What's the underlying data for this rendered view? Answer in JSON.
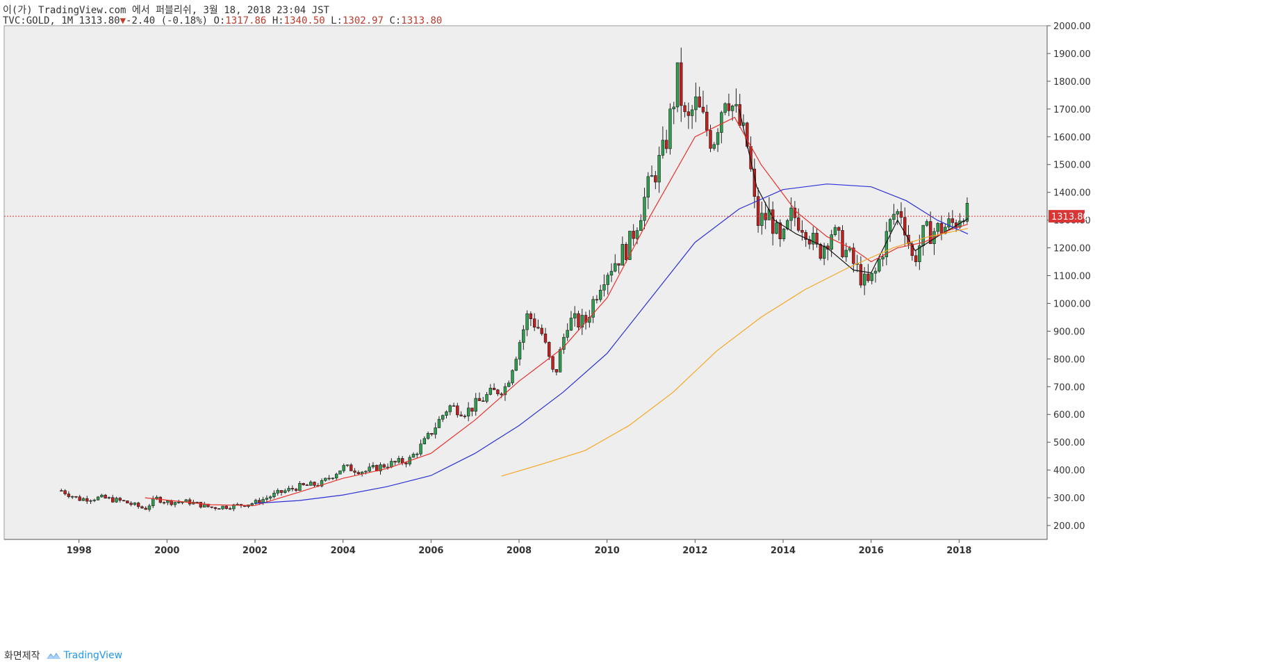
{
  "header": {
    "published": "이(가) TradingView.com 에서 퍼블리쉬, 3월 18, 2018 23:04 JST",
    "symbol": "TVC:GOLD, 1M",
    "last": "1313.80",
    "change_arrow": "▼",
    "change": "-2.40 (-0.18%)",
    "o_label": "O:",
    "o_value": "1317.86",
    "h_label": "H:",
    "h_value": "1340.50",
    "l_label": "L:",
    "l_value": "1302.97",
    "c_label": "C:",
    "c_value": "1313.80"
  },
  "footer": {
    "snapshot": "화면제작",
    "brand": "TradingView",
    "brand_icon": "tradingview-logo-icon"
  },
  "colors": {
    "up": "#2e9e4f",
    "down": "#c21f1f",
    "wick": "#222222",
    "ma_fast": "#111111",
    "ma_mid": "#e8302b",
    "ma_slow": "#2b2fd6",
    "ma_long": "#f5a623",
    "price_line": "#d93535",
    "plot_bg": "#eeeeee"
  },
  "chart_data": {
    "type": "candlestick",
    "title": "TVC:GOLD, 1M",
    "x_range": [
      1996.3,
      2020.0
    ],
    "ylim": [
      150,
      2000
    ],
    "y_ticks": [
      200,
      300,
      400,
      500,
      600,
      700,
      800,
      900,
      1000,
      1100,
      1200,
      1300,
      1400,
      1500,
      1600,
      1700,
      1800,
      1900,
      2000
    ],
    "y_tick_labels": [
      "200.00",
      "300.00",
      "400.00",
      "500.00",
      "600.00",
      "700.00",
      "800.00",
      "900.00",
      "1000.00",
      "1100.00",
      "1200.00",
      "1300.00",
      "1400.00",
      "1500.00",
      "1600.00",
      "1700.00",
      "1800.00",
      "1900.00",
      "2000.00"
    ],
    "x_ticks": [
      1998,
      2000,
      2002,
      2004,
      2006,
      2008,
      2010,
      2012,
      2014,
      2016,
      2018
    ],
    "x_tick_labels": [
      "1998",
      "2000",
      "2002",
      "2004",
      "2006",
      "2008",
      "2010",
      "2012",
      "2014",
      "2016",
      "2018"
    ],
    "last_price": 1313.8,
    "last_price_label": "1313.80",
    "close_anchors": [
      [
        1997.6,
        326
      ],
      [
        1998.0,
        295
      ],
      [
        1998.5,
        300
      ],
      [
        1999.0,
        287
      ],
      [
        1999.5,
        260
      ],
      [
        1999.75,
        298
      ],
      [
        2000.0,
        285
      ],
      [
        2000.5,
        285
      ],
      [
        2001.0,
        265
      ],
      [
        2001.5,
        270
      ],
      [
        2002.0,
        282
      ],
      [
        2002.5,
        315
      ],
      [
        2003.0,
        340
      ],
      [
        2003.5,
        350
      ],
      [
        2004.0,
        410
      ],
      [
        2004.5,
        395
      ],
      [
        2005.0,
        420
      ],
      [
        2005.5,
        435
      ],
      [
        2005.9,
        510
      ],
      [
        2006.4,
        630
      ],
      [
        2006.8,
        610
      ],
      [
        2007.3,
        670
      ],
      [
        2007.7,
        700
      ],
      [
        2008.2,
        960
      ],
      [
        2008.5,
        900
      ],
      [
        2008.8,
        730
      ],
      [
        2009.1,
        935
      ],
      [
        2009.5,
        930
      ],
      [
        2009.9,
        1100
      ],
      [
        2010.5,
        1210
      ],
      [
        2010.9,
        1400
      ],
      [
        2011.3,
        1550
      ],
      [
        2011.6,
        1810
      ],
      [
        2011.8,
        1630
      ],
      [
        2012.0,
        1720
      ],
      [
        2012.4,
        1580
      ],
      [
        2012.7,
        1770
      ],
      [
        2012.95,
        1670
      ],
      [
        2013.2,
        1560
      ],
      [
        2013.4,
        1290
      ],
      [
        2013.7,
        1320
      ],
      [
        2013.95,
        1200
      ],
      [
        2014.2,
        1320
      ],
      [
        2014.5,
        1280
      ],
      [
        2014.8,
        1180
      ],
      [
        2015.1,
        1260
      ],
      [
        2015.5,
        1170
      ],
      [
        2015.9,
        1060
      ],
      [
        2016.1,
        1110
      ],
      [
        2016.5,
        1320
      ],
      [
        2016.7,
        1330
      ],
      [
        2016.95,
        1150
      ],
      [
        2017.2,
        1250
      ],
      [
        2017.6,
        1270
      ],
      [
        2017.9,
        1290
      ],
      [
        2018.1,
        1340
      ],
      [
        2018.2,
        1314
      ]
    ],
    "moving_averages": [
      {
        "name": "MA fast",
        "color": "#111111",
        "values": [
          [
            2013.0,
            1700
          ],
          [
            2013.4,
            1420
          ],
          [
            2013.8,
            1300
          ],
          [
            2014.3,
            1250
          ],
          [
            2015.0,
            1200
          ],
          [
            2015.6,
            1120
          ],
          [
            2016.0,
            1110
          ],
          [
            2016.6,
            1300
          ],
          [
            2017.0,
            1190
          ],
          [
            2017.6,
            1250
          ],
          [
            2018.2,
            1305
          ]
        ]
      },
      {
        "name": "MA mid",
        "color": "#e8302b",
        "values": [
          [
            1999.5,
            300
          ],
          [
            2001.0,
            275
          ],
          [
            2002.0,
            272
          ],
          [
            2003.0,
            320
          ],
          [
            2004.0,
            370
          ],
          [
            2005.0,
            405
          ],
          [
            2006.0,
            460
          ],
          [
            2007.0,
            580
          ],
          [
            2008.0,
            720
          ],
          [
            2009.0,
            840
          ],
          [
            2010.0,
            1020
          ],
          [
            2011.0,
            1320
          ],
          [
            2012.0,
            1600
          ],
          [
            2012.9,
            1670
          ],
          [
            2013.5,
            1500
          ],
          [
            2014.3,
            1330
          ],
          [
            2015.0,
            1240
          ],
          [
            2015.6,
            1195
          ],
          [
            2016.0,
            1150
          ],
          [
            2016.6,
            1200
          ],
          [
            2017.2,
            1220
          ],
          [
            2017.8,
            1265
          ],
          [
            2018.2,
            1285
          ]
        ]
      },
      {
        "name": "MA slow",
        "color": "#2b2fd6",
        "values": [
          [
            2002.0,
            280
          ],
          [
            2003.0,
            290
          ],
          [
            2004.0,
            310
          ],
          [
            2005.0,
            340
          ],
          [
            2006.0,
            380
          ],
          [
            2007.0,
            460
          ],
          [
            2008.0,
            560
          ],
          [
            2009.0,
            680
          ],
          [
            2010.0,
            820
          ],
          [
            2011.0,
            1020
          ],
          [
            2012.0,
            1220
          ],
          [
            2013.0,
            1340
          ],
          [
            2014.0,
            1410
          ],
          [
            2015.0,
            1430
          ],
          [
            2016.0,
            1420
          ],
          [
            2016.8,
            1370
          ],
          [
            2017.5,
            1300
          ],
          [
            2018.2,
            1250
          ]
        ]
      },
      {
        "name": "MA long",
        "color": "#f5a623",
        "values": [
          [
            2007.6,
            378
          ],
          [
            2008.5,
            420
          ],
          [
            2009.5,
            470
          ],
          [
            2010.5,
            560
          ],
          [
            2011.5,
            680
          ],
          [
            2012.5,
            830
          ],
          [
            2013.5,
            950
          ],
          [
            2014.5,
            1050
          ],
          [
            2015.5,
            1130
          ],
          [
            2016.5,
            1200
          ],
          [
            2017.3,
            1240
          ],
          [
            2018.2,
            1270
          ]
        ]
      }
    ]
  }
}
